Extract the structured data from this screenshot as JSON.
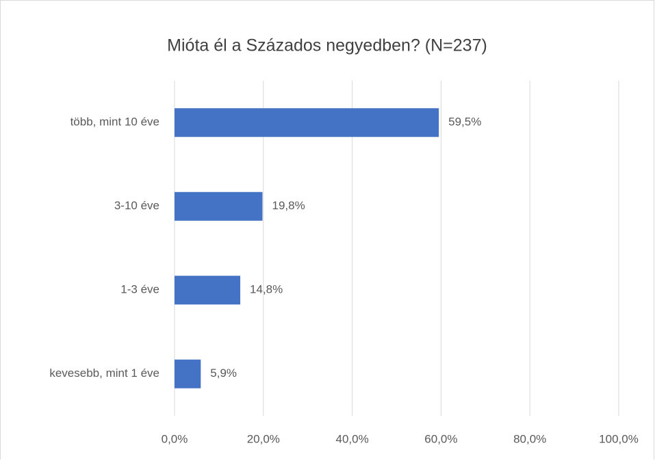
{
  "chart_data": {
    "type": "bar",
    "orientation": "horizontal",
    "title": "Mióta él a Százados negyedben? (N=237)",
    "categories": [
      "több, mint 10 éve",
      "3-10 éve",
      "1-3 éve",
      "kevesebb, mint 1 éve"
    ],
    "values": [
      59.5,
      19.8,
      14.8,
      5.9
    ],
    "value_labels": [
      "59,5%",
      "19,8%",
      "14,8%",
      "5,9%"
    ],
    "color": "#4472c4",
    "xlim": [
      0,
      100
    ],
    "xticks": [
      {
        "value": 0,
        "label": "0,0%"
      },
      {
        "value": 20,
        "label": "20,0%"
      },
      {
        "value": 40,
        "label": "40,0%"
      },
      {
        "value": 60,
        "label": "60,0%"
      },
      {
        "value": 80,
        "label": "80,0%"
      },
      {
        "value": 100,
        "label": "100,0%"
      }
    ],
    "grid": true
  }
}
